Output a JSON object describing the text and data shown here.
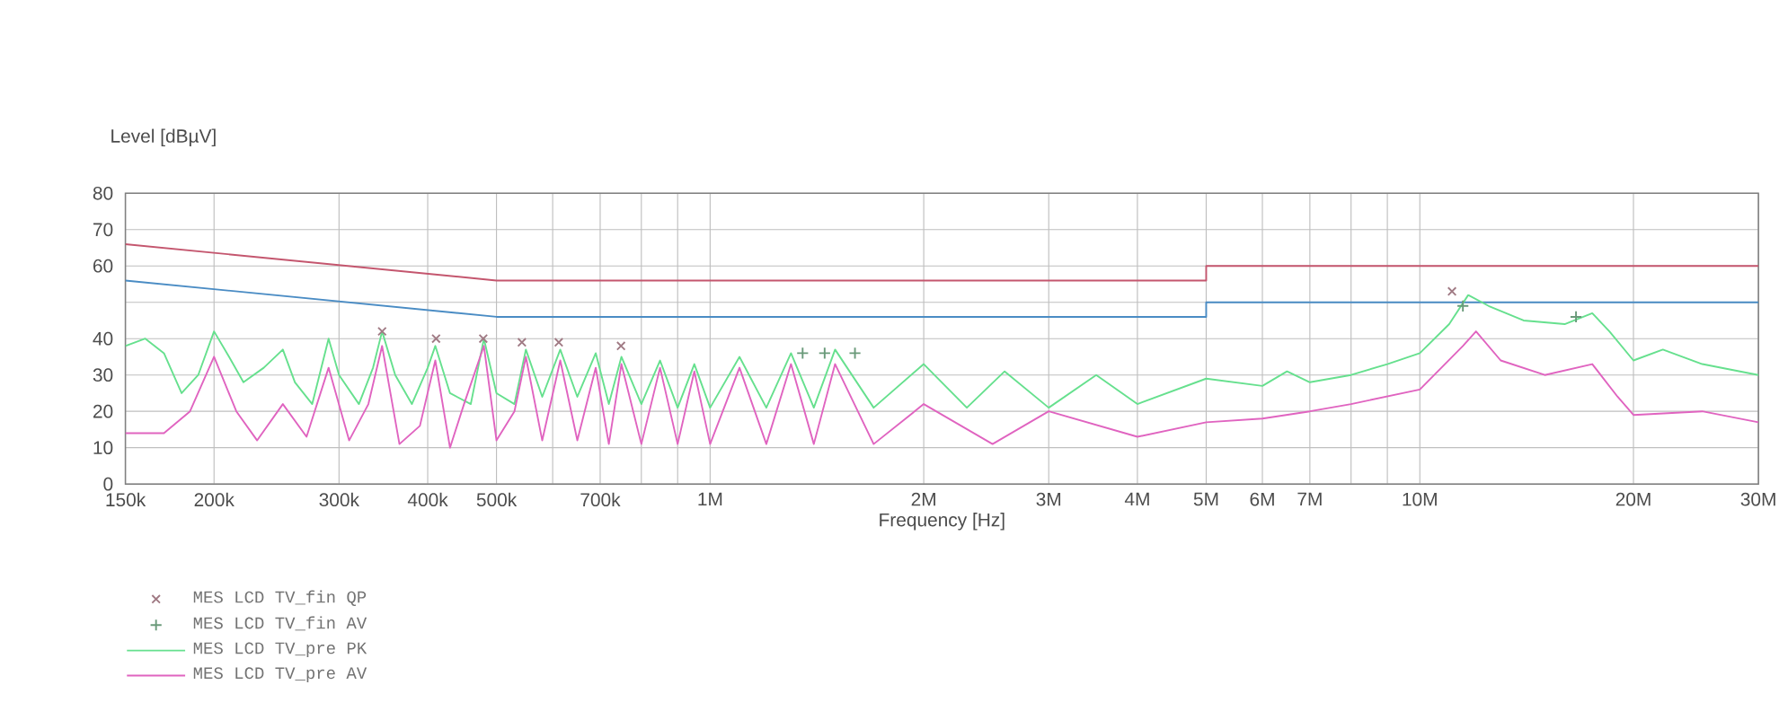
{
  "chart_data": {
    "type": "line",
    "xlabel": "Frequency [Hz]",
    "ylabel": "Level [dBµV]",
    "log": "x",
    "grid": true,
    "legend": "bottom left",
    "xlim": [
      150000,
      30000000
    ],
    "ylim": [
      0,
      80
    ],
    "xticks": [
      {
        "value": 150000,
        "label": "150k"
      },
      {
        "value": 200000,
        "label": "200k"
      },
      {
        "value": 300000,
        "label": "300k"
      },
      {
        "value": 400000,
        "label": "400k"
      },
      {
        "value": 500000,
        "label": "500k"
      },
      {
        "value": 600000,
        "label": null
      },
      {
        "value": 700000,
        "label": "700k"
      },
      {
        "value": 800000,
        "label": null
      },
      {
        "value": 900000,
        "label": null
      },
      {
        "value": 1000000,
        "label": "1M"
      },
      {
        "value": 2000000,
        "label": "2M"
      },
      {
        "value": 3000000,
        "label": "3M"
      },
      {
        "value": 4000000,
        "label": "4M"
      },
      {
        "value": 5000000,
        "label": "5M"
      },
      {
        "value": 6000000,
        "label": "6M"
      },
      {
        "value": 7000000,
        "label": "7M"
      },
      {
        "value": 8000000,
        "label": null
      },
      {
        "value": 9000000,
        "label": null
      },
      {
        "value": 10000000,
        "label": "10M"
      },
      {
        "value": 20000000,
        "label": "20M"
      },
      {
        "value": 30000000,
        "label": "30M"
      }
    ],
    "yticks": [
      0,
      10,
      20,
      30,
      40,
      {
        "value": 50,
        "label": null
      },
      60,
      70,
      80
    ],
    "series": [
      {
        "color": "#c4566e",
        "x": [
          150000,
          500000,
          5000000,
          5000000,
          30000000
        ],
        "values": [
          66,
          56,
          56,
          60,
          60
        ]
      },
      {
        "color": "#4a8cc4",
        "x": [
          150000,
          500000,
          5000000,
          5000000,
          30000000
        ],
        "values": [
          56,
          46,
          46,
          50,
          50
        ]
      },
      {
        "name": "MES   LCD TV_pre PK",
        "color": "#66e08e",
        "x": [
          150000,
          160000,
          170000,
          180000,
          190000,
          200000,
          210000,
          220000,
          235000,
          250000,
          260000,
          275000,
          290000,
          300000,
          320000,
          335000,
          345000,
          360000,
          380000,
          400000,
          410000,
          430000,
          460000,
          480000,
          500000,
          530000,
          550000,
          580000,
          615000,
          650000,
          690000,
          720000,
          750000,
          800000,
          850000,
          900000,
          950000,
          1000000,
          1100000,
          1200000,
          1300000,
          1400000,
          1500000,
          1700000,
          2000000,
          2300000,
          2600000,
          3000000,
          3500000,
          4000000,
          5000000,
          6000000,
          6500000,
          7000000,
          8000000,
          9000000,
          10000000,
          11000000,
          11700000,
          12500000,
          14000000,
          16000000,
          17500000,
          18500000,
          20000000,
          22000000,
          25000000,
          30000000
        ],
        "values": [
          38,
          40,
          36,
          25,
          30,
          42,
          35,
          28,
          32,
          37,
          28,
          22,
          40,
          30,
          22,
          32,
          42,
          30,
          22,
          32,
          38,
          25,
          22,
          40,
          25,
          22,
          37,
          24,
          37,
          24,
          36,
          22,
          35,
          22,
          34,
          21,
          33,
          21,
          35,
          21,
          36,
          21,
          37,
          21,
          33,
          21,
          31,
          21,
          30,
          22,
          29,
          27,
          31,
          28,
          30,
          33,
          36,
          44,
          52,
          49,
          45,
          44,
          47,
          42,
          34,
          37,
          33,
          30
        ]
      },
      {
        "name": "MES   LCD TV_pre AV",
        "color": "#e064c0",
        "x": [
          150000,
          170000,
          185000,
          200000,
          215000,
          230000,
          250000,
          270000,
          290000,
          310000,
          330000,
          345000,
          365000,
          390000,
          410000,
          430000,
          450000,
          480000,
          500000,
          530000,
          550000,
          580000,
          615000,
          650000,
          690000,
          720000,
          750000,
          800000,
          850000,
          900000,
          950000,
          1000000,
          1100000,
          1200000,
          1300000,
          1400000,
          1500000,
          1700000,
          2000000,
          2500000,
          3000000,
          4000000,
          5000000,
          6000000,
          7000000,
          8000000,
          10000000,
          11500000,
          12000000,
          13000000,
          15000000,
          17500000,
          19000000,
          20000000,
          25000000,
          30000000
        ],
        "values": [
          14,
          14,
          20,
          35,
          20,
          12,
          22,
          13,
          32,
          12,
          22,
          38,
          11,
          16,
          34,
          10,
          22,
          38,
          12,
          20,
          35,
          12,
          34,
          12,
          32,
          11,
          33,
          11,
          32,
          11,
          31,
          11,
          32,
          11,
          33,
          11,
          33,
          11,
          22,
          11,
          20,
          13,
          17,
          18,
          20,
          22,
          26,
          38,
          42,
          34,
          30,
          33,
          24,
          19,
          20,
          17
        ]
      },
      {
        "name": "MES   LCD TV_fin QP",
        "type": "scatter",
        "marker": "cross",
        "color": "#a07a84",
        "x": [
          345000,
          411000,
          479000,
          543000,
          612000,
          749000,
          11100000
        ],
        "values": [
          42,
          40,
          40,
          39,
          39,
          38,
          53
        ]
      },
      {
        "name": "MES   LCD TV_fin AV",
        "type": "scatter",
        "marker": "plus",
        "color": "#6a9a7a",
        "x": [
          1350000,
          1450000,
          1600000,
          11500000,
          16600000
        ],
        "values": [
          36,
          36,
          36,
          49,
          46
        ]
      }
    ]
  }
}
